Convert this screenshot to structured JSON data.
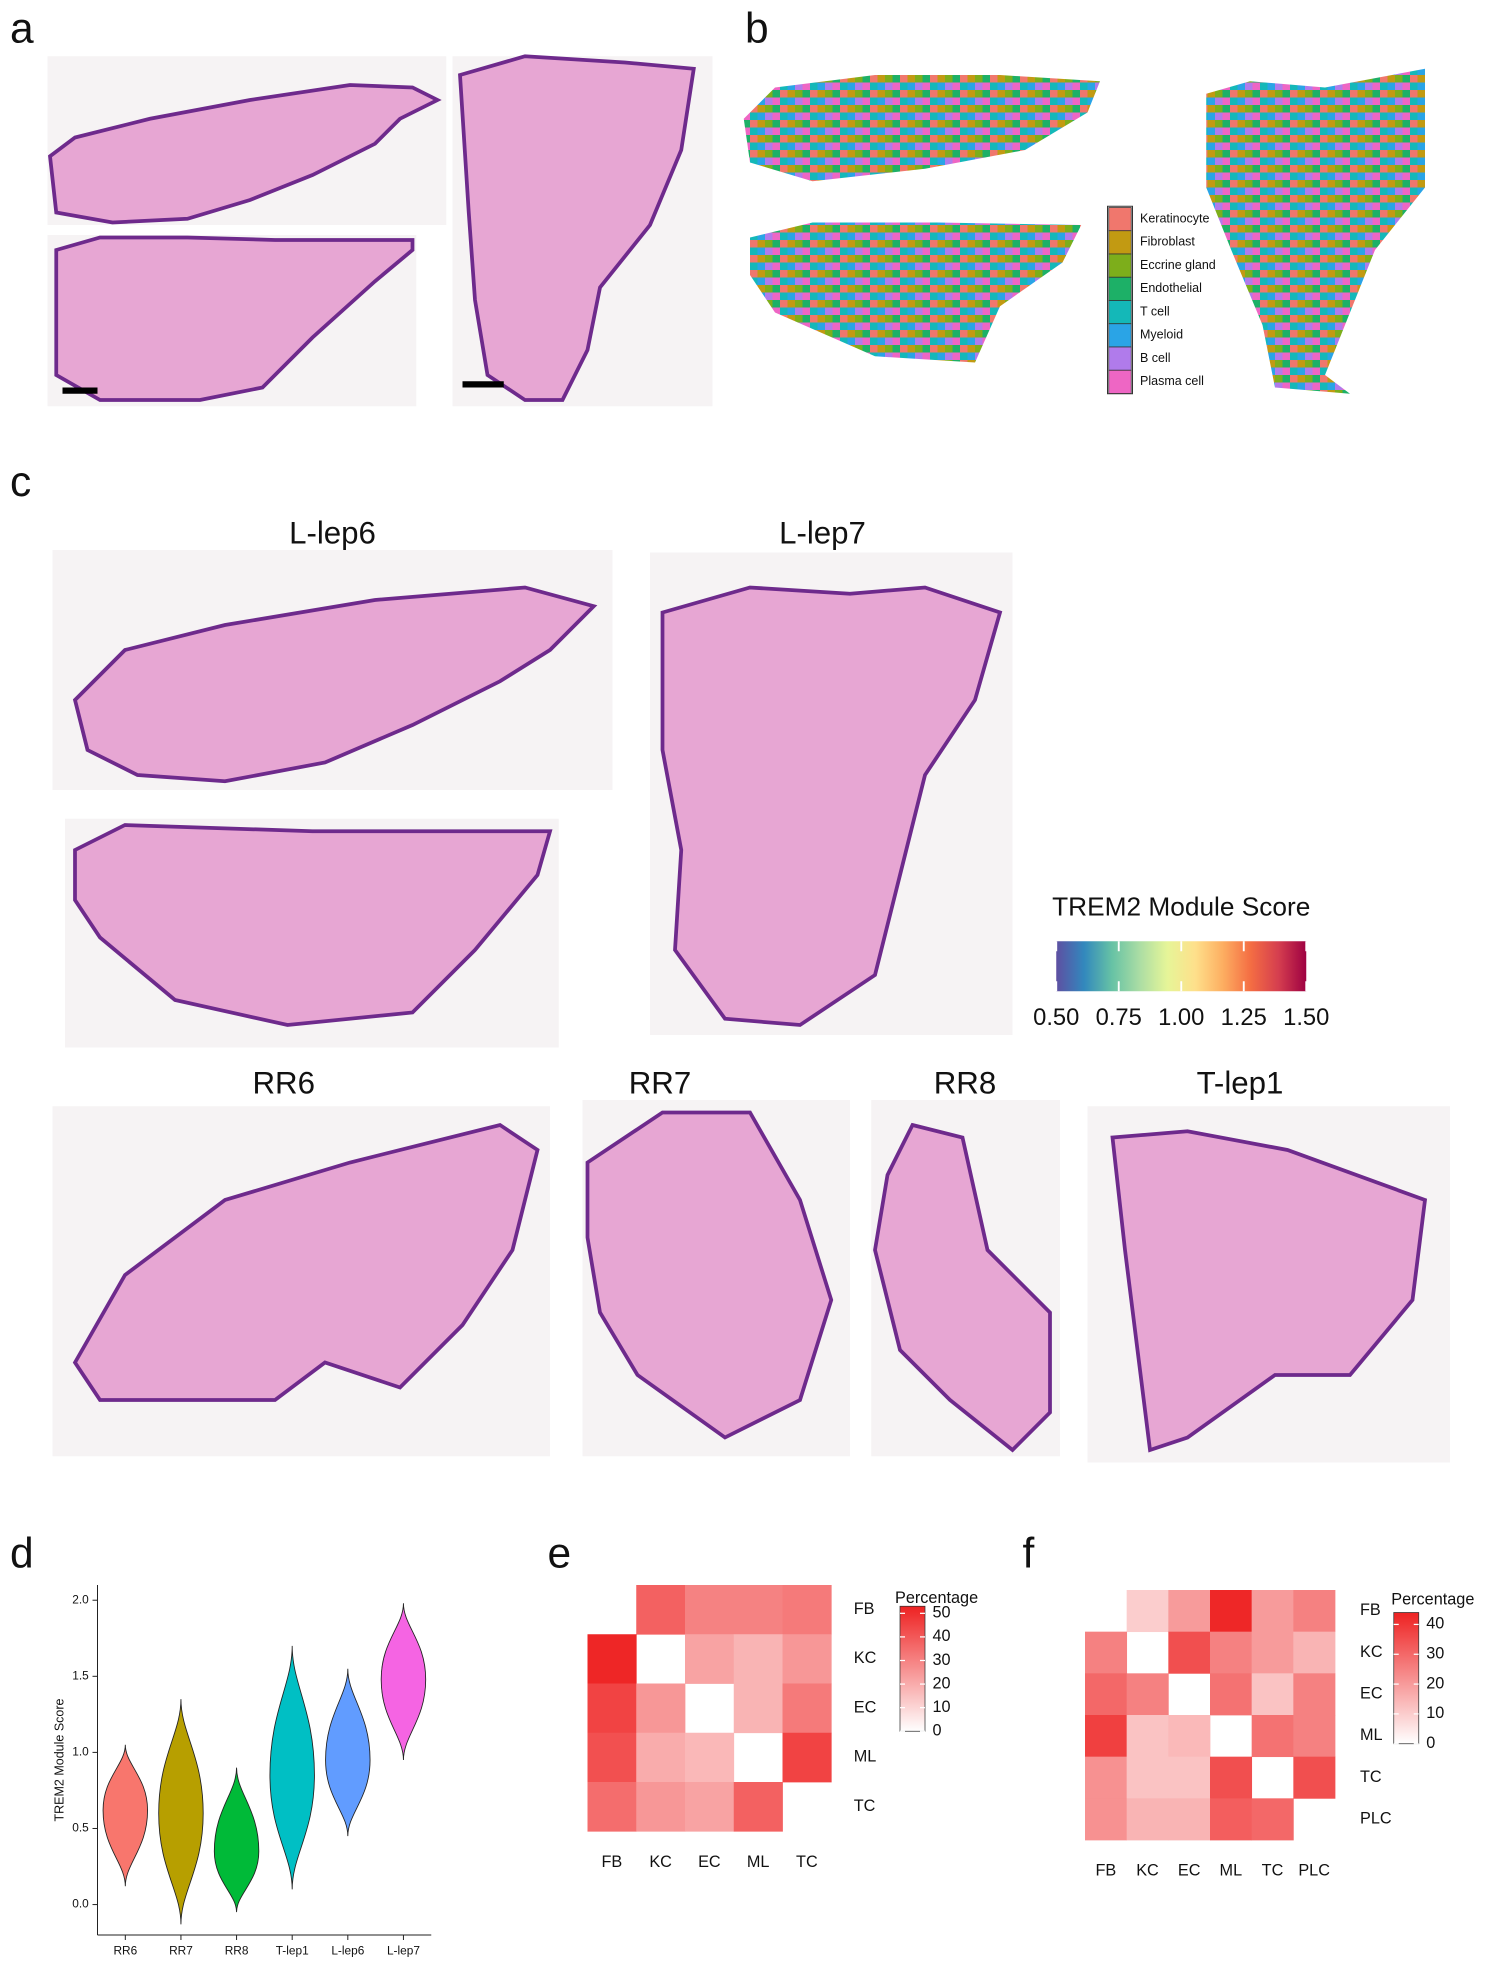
{
  "panel_labels": [
    "a",
    "b",
    "c",
    "d",
    "e",
    "f"
  ],
  "panel_b_legend": {
    "items": [
      {
        "name": "Keratinocyte",
        "color": "#F0776D"
      },
      {
        "name": "Fibroblast",
        "color": "#C29A12"
      },
      {
        "name": "Eccrine gland",
        "color": "#7DAE1B"
      },
      {
        "name": "Endothelial",
        "color": "#1DB067"
      },
      {
        "name": "T cell",
        "color": "#14B8B8"
      },
      {
        "name": "Myeloid",
        "color": "#2AA4E6"
      },
      {
        "name": "B cell",
        "color": "#B07BEB"
      },
      {
        "name": "Plasma cell",
        "color": "#EE66C4"
      }
    ]
  },
  "panel_c": {
    "titles": [
      "L-lep6",
      "L-lep7",
      "RR6",
      "RR7",
      "RR8",
      "T-lep1"
    ],
    "colorbar": {
      "title": "TREM2 Module Score",
      "lim": [
        0.5,
        1.5
      ],
      "ticks": [
        {
          "value": 0.5,
          "label": "0.50"
        },
        {
          "value": 0.75,
          "label": "0.75"
        },
        {
          "value": 1.0,
          "label": "1.00"
        },
        {
          "value": 1.25,
          "label": "1.25"
        },
        {
          "value": 1.5,
          "label": "1.50"
        }
      ],
      "colors": [
        "#5E4FA2",
        "#3288BD",
        "#66C2A5",
        "#ABDDA4",
        "#E6F598",
        "#FEE08B",
        "#FDAE61",
        "#F46D43",
        "#D53E4F",
        "#9E0142"
      ]
    }
  },
  "chart_data": [
    {
      "type": "violin",
      "y_label": "TREM2 Module Score",
      "categories": [
        "RR6",
        "RR7",
        "RR8",
        "T-lep1",
        "L-lep6",
        "L-lep7"
      ],
      "colors": [
        "#F8766D",
        "#B79F00",
        "#00BA38",
        "#00BFC4",
        "#619CFF",
        "#F564E3"
      ],
      "min": [
        0.12,
        -0.13,
        -0.05,
        0.1,
        0.45,
        0.95
      ],
      "median": [
        0.62,
        0.6,
        0.35,
        0.85,
        0.95,
        1.48
      ],
      "max": [
        1.05,
        1.35,
        0.9,
        1.7,
        1.55,
        1.98
      ],
      "ylim": [
        -0.2,
        2.1
      ],
      "yticks": [
        {
          "value": 0,
          "label": "0.0"
        },
        {
          "value": 0.5,
          "label": "0.5"
        },
        {
          "value": 1,
          "label": "1.0"
        },
        {
          "value": 1.5,
          "label": "1.5"
        },
        {
          "value": 2,
          "label": "2.0"
        }
      ]
    },
    {
      "type": "heatmap",
      "rows": [
        "FB",
        "KC",
        "EC",
        "ML",
        "TC"
      ],
      "columns": [
        "FB",
        "KC",
        "EC",
        "ML",
        "TC"
      ],
      "values": [
        [
          null,
          38,
          30,
          30,
          32
        ],
        [
          52,
          null,
          22,
          18,
          25
        ],
        [
          45,
          25,
          null,
          18,
          32
        ],
        [
          42,
          20,
          17,
          null,
          45
        ],
        [
          35,
          25,
          22,
          38,
          null
        ]
      ],
      "legend_title": "Percentage",
      "zlim": [
        0,
        53
      ],
      "zticks": [
        0,
        10,
        20,
        30,
        40,
        50
      ],
      "color_low": "#ffffff",
      "color_high": "#ee2222"
    },
    {
      "type": "heatmap",
      "rows": [
        "FB",
        "KC",
        "EC",
        "ML",
        "TC",
        "PLC"
      ],
      "columns": [
        "FB",
        "KC",
        "EC",
        "ML",
        "TC",
        "PLC"
      ],
      "values": [
        [
          null,
          10,
          20,
          43,
          20,
          25
        ],
        [
          25,
          null,
          35,
          25,
          20,
          15
        ],
        [
          30,
          25,
          null,
          28,
          12,
          25
        ],
        [
          38,
          12,
          14,
          null,
          28,
          25
        ],
        [
          22,
          12,
          12,
          35,
          null,
          35
        ],
        [
          22,
          15,
          15,
          32,
          30,
          null
        ]
      ],
      "legend_title": "Percentage",
      "zlim": [
        0,
        44
      ],
      "zticks": [
        0,
        10,
        20,
        30,
        40
      ],
      "color_low": "#ffffff",
      "color_high": "#ee2222"
    }
  ]
}
